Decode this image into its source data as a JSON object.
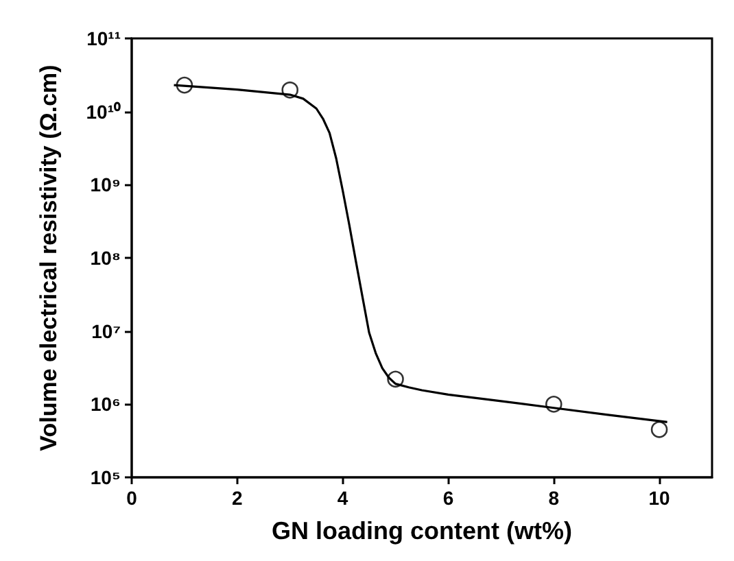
{
  "chart_data": {
    "type": "scatter",
    "xlabel": "GN loading content (wt%)",
    "ylabel": "Volume electrical resistivity (Ω.cm)",
    "log": "y",
    "xlim": [
      0,
      11
    ],
    "xticks": [
      0,
      2,
      4,
      6,
      8,
      10
    ],
    "ylim": [
      100000,
      100000000000
    ],
    "yticks": [
      {
        "value": 100000,
        "label": "10⁵"
      },
      {
        "value": 1000000,
        "label": "10⁶"
      },
      {
        "value": 10000000,
        "label": "10⁷"
      },
      {
        "value": 100000000,
        "label": "10⁸"
      },
      {
        "value": 1000000000,
        "label": "10⁹"
      },
      {
        "value": 10000000000,
        "label": "10¹⁰"
      },
      {
        "value": 100000000000,
        "label": "10¹¹"
      }
    ],
    "grid": false,
    "series": [
      {
        "color": "#000000",
        "marker": "circle",
        "x": [
          1,
          3,
          5,
          8,
          10
        ],
        "values": [
          23000000000,
          19700000000,
          2200000,
          1000000,
          450000
        ]
      },
      {
        "type": "line",
        "color": "#000000",
        "marker": "none",
        "line_style": "solid",
        "x": [
          0.8,
          2,
          3,
          3.25,
          3.5,
          3.625,
          3.75,
          3.875,
          4,
          4.125,
          4.25,
          4.375,
          4.5,
          4.625,
          4.75,
          4.875,
          5,
          5.25,
          5.5,
          6,
          7,
          8,
          9,
          10.15
        ],
        "values": [
          23000000000,
          20000000000,
          17000000000,
          15000000000,
          11000000000,
          8000000000,
          5100000000,
          2300000000,
          830000000,
          280000000,
          89000000,
          29000000,
          9500000,
          5000000,
          3100000,
          2300000,
          1900000,
          1700000,
          1550000,
          1350000,
          1100000,
          890000,
          720000,
          570000
        ]
      }
    ]
  }
}
